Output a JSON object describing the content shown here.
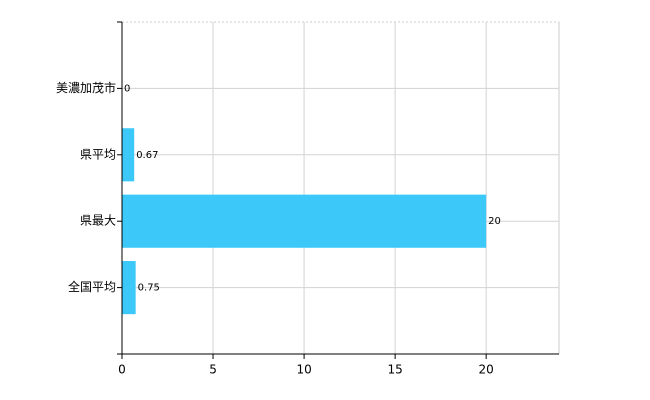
{
  "chart_data": {
    "type": "barh",
    "categories": [
      "美濃加茂市",
      "県平均",
      "県最大",
      "全国平均"
    ],
    "values": [
      0,
      0.67,
      20,
      0.75
    ],
    "color": "#3cc8f8",
    "xlim": [
      0,
      24
    ],
    "xticks": [
      0,
      5,
      10,
      15,
      20
    ],
    "grid": true
  }
}
